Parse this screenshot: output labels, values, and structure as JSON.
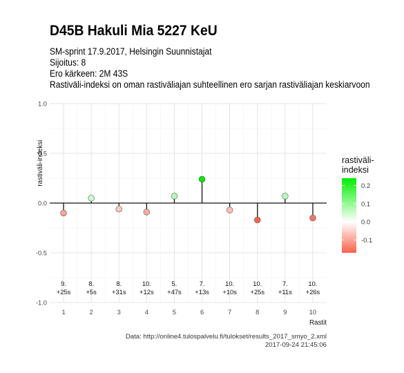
{
  "title": "D45B Hakuli Mia 5227 KeU",
  "subtitles": [
    "SM-sprint 17.9.2017, Helsingin Suunnistajat",
    "Sijoitus: 8",
    "Ero kärkeen: 2M 43S",
    "Rastiväli-indeksi on oman rastiväliajan suhteellinen ero sarjan rastiväliajan keskiarvoon"
  ],
  "caption": {
    "source": "Data: http://online4.tulospalvelu.fi/tulokset/results_2017_smyo_2.xml",
    "timestamp": "2017-09-24 21:45:06"
  },
  "chart_data": {
    "type": "scatter",
    "subtype": "lollipop",
    "xlabel": "Rastit",
    "ylabel": "rastiväli-indeksi",
    "x": [
      1,
      2,
      3,
      4,
      5,
      6,
      7,
      8,
      9,
      10
    ],
    "values": [
      -0.1,
      0.05,
      -0.06,
      -0.09,
      0.07,
      0.24,
      -0.07,
      -0.17,
      0.07,
      -0.15
    ],
    "rank_labels": [
      "9.",
      "8.",
      "8.",
      "10.",
      "5.",
      "7.",
      "10.",
      "10.",
      "7.",
      "10."
    ],
    "diff_labels": [
      "+25s",
      "+5s",
      "+31s",
      "+12s",
      "+47s",
      "+13s",
      "+10s",
      "+25s",
      "+11s",
      "+26s"
    ],
    "xlim": [
      0.5,
      10.5
    ],
    "ylim": [
      -1.0,
      1.0
    ],
    "yticks": [
      1.0,
      0.5,
      0.0,
      -0.5,
      -1.0
    ],
    "ytick_labels": [
      "1.0",
      "0.5",
      "0.0",
      "-0.5",
      "-1.0"
    ],
    "grid": true,
    "legend": {
      "title": "rastiväli-\nindeksi",
      "placement": "right",
      "ticks": [
        0.2,
        0.1,
        0.0,
        -0.1
      ],
      "tick_labels": [
        "0.2",
        "0.1",
        "0.0",
        "-0.1"
      ],
      "range": [
        -0.17,
        0.24
      ]
    },
    "colors": {
      "high": "#00ee00",
      "mid": "#ffffff",
      "low": "#f8634a"
    }
  }
}
